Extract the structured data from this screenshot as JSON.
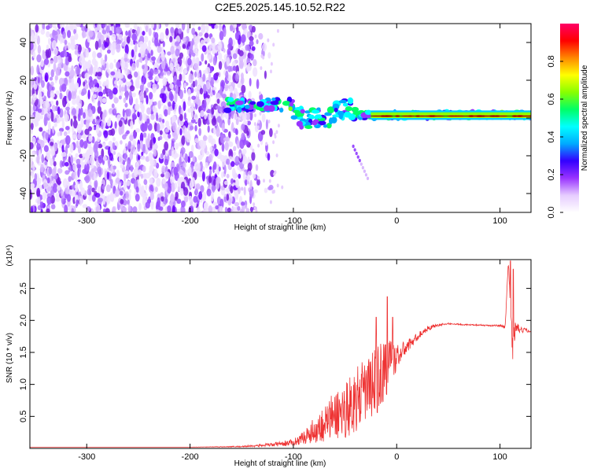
{
  "title": "C2E5.2025.145.10.52.R22",
  "colors": {
    "snr_line": "#ee3333",
    "axis": "#000000",
    "spectrogram_noise": "#7a1fe0",
    "spectrogram_strong": "#3ab0ff"
  },
  "chart_data": [
    {
      "type": "heatmap",
      "xlabel": "Height of straight line (km)",
      "ylabel": "Frequency (Hz)",
      "xlim": [
        -355,
        130
      ],
      "ylim": [
        -50,
        50
      ],
      "xticks": [
        "-300",
        "-200",
        "-100",
        "0",
        "100"
      ],
      "yticks": [
        "40",
        "20",
        "0",
        "-20",
        "-40"
      ],
      "colorbar": {
        "label": "Normalized spectral amplitude",
        "range": [
          0,
          1
        ],
        "ticks": [
          "0.0",
          "0.2",
          "0.4",
          "0.6",
          "0.8"
        ],
        "colormap": [
          "#ffffff",
          "#e6ccff",
          "#9933ff",
          "#3300ff",
          "#00aaff",
          "#00ffff",
          "#00ff66",
          "#88ff00",
          "#ffff00",
          "#ff8800",
          "#ff0000",
          "#ff0066"
        ]
      },
      "noise_region_x": [
        -355,
        -140
      ],
      "signal_center_hz": 1,
      "signal_segments": [
        {
          "x": [
            -165,
            -100
          ],
          "hz": [
            4,
            10
          ]
        },
        {
          "x": [
            -100,
            -60
          ],
          "hz": [
            -5,
            5
          ]
        },
        {
          "x": [
            -60,
            -40
          ],
          "hz": [
            -2,
            10
          ]
        },
        {
          "x": [
            -40,
            130
          ],
          "hz": [
            0,
            3
          ]
        }
      ],
      "band_segment": {
        "x": [
          -25,
          130
        ],
        "hz_range": [
          0,
          3
        ]
      },
      "tail": {
        "x": [
          -42,
          -28
        ],
        "hz": [
          -15,
          -32
        ]
      }
    },
    {
      "type": "line",
      "xlabel": "Height of straight line (km)",
      "ylabel": "SNR (10 * v/v)",
      "multiplier_label": "(x10⁴)",
      "xlim": [
        -355,
        130
      ],
      "ylim": [
        0,
        2.95
      ],
      "xticks": [
        "-300",
        "-200",
        "-100",
        "0",
        "100"
      ],
      "yticks": [
        "0.5",
        "1.0",
        "1.5",
        "2.0",
        "2.5"
      ],
      "series": [
        {
          "x": [
            -355,
            -300,
            -250,
            -200,
            -150,
            -120,
            -100,
            -90,
            -80,
            -70,
            -60,
            -50,
            -40,
            -30,
            -20,
            -10,
            0,
            10,
            20,
            30,
            40,
            50,
            60,
            70,
            80,
            90,
            100,
            105,
            108,
            110,
            112,
            115,
            120,
            125,
            130
          ],
          "y": [
            0.02,
            0.02,
            0.02,
            0.02,
            0.03,
            0.06,
            0.1,
            0.18,
            0.3,
            0.42,
            0.55,
            0.65,
            0.8,
            0.95,
            1.1,
            1.3,
            1.45,
            1.6,
            1.75,
            1.88,
            1.93,
            1.95,
            1.94,
            1.93,
            1.93,
            1.92,
            1.92,
            1.9,
            2.9,
            2.4,
            1.6,
            1.9,
            1.85,
            1.85,
            1.83
          ],
          "noise_amplitude": [
            0.0,
            0.0,
            0.0,
            0.0,
            0.01,
            0.03,
            0.05,
            0.1,
            0.2,
            0.3,
            0.4,
            0.45,
            0.5,
            0.5,
            0.55,
            0.55,
            0.2,
            0.1,
            0.06,
            0.04,
            0.02,
            0.01,
            0.01,
            0.01,
            0.01,
            0.01,
            0.02,
            0.05,
            0.0,
            0.2,
            0.3,
            0.1,
            0.05,
            0.03,
            0.02
          ],
          "peaks": [
            {
              "x": -9,
              "y": 2.37
            },
            {
              "x": -20,
              "y": 2.05
            },
            {
              "x": -4,
              "y": 2.05
            },
            {
              "x": 110,
              "y": 2.93
            },
            {
              "x": 113,
              "y": 2.8
            }
          ]
        }
      ]
    }
  ]
}
